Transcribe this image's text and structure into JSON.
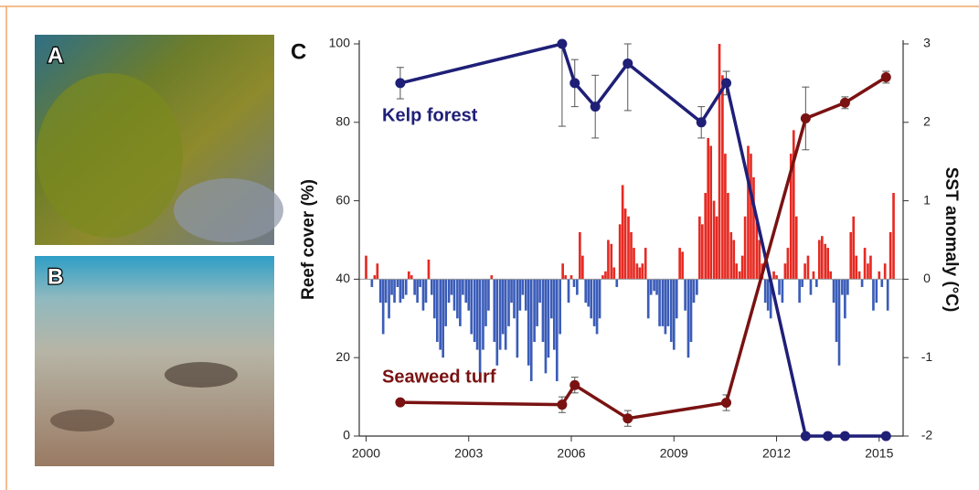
{
  "panels": {
    "a": "A",
    "b": "B"
  },
  "chart_data": {
    "type": "line",
    "panel_label": "C",
    "ylabel": "Reef cover (%)",
    "y2label": "SST anomaly (°C)",
    "xlim": [
      1999.8,
      2015.7
    ],
    "xticks": [
      2000,
      2003,
      2006,
      2009,
      2012,
      2015
    ],
    "ylim": [
      0,
      100
    ],
    "yticks": [
      0,
      20,
      40,
      60,
      80,
      100
    ],
    "y2lim": [
      -2,
      3
    ],
    "y2ticks": [
      -2,
      -1,
      0,
      1,
      2,
      3
    ],
    "series": [
      {
        "name": "Kelp forest",
        "color": "#1f1f78",
        "x": [
          2001.0,
          2005.73,
          2006.1,
          2006.7,
          2007.65,
          2009.8,
          2010.53,
          2012.85,
          2013.5,
          2014.0,
          2015.2
        ],
        "values": [
          90,
          100,
          90,
          84,
          95,
          80,
          90,
          0,
          0,
          0,
          0
        ],
        "errors": [
          4,
          21,
          6,
          8,
          12,
          4,
          3,
          null,
          null,
          null,
          null
        ]
      },
      {
        "name": "Seaweed turf",
        "color": "#7a1212",
        "x": [
          2001.0,
          2005.73,
          2006.1,
          2007.65,
          2010.53,
          2012.85,
          2014.0,
          2015.2
        ],
        "values": [
          8.6,
          8,
          13,
          4.5,
          8.5,
          81,
          85,
          91.5
        ],
        "errors": [
          null,
          2,
          2,
          2,
          2,
          8,
          1.5,
          1.5
        ]
      }
    ],
    "bars": {
      "axis": "y2",
      "positive_color": "#e62a22",
      "negative_color": "#3b5cb8",
      "x": [
        2000.0,
        2000.08,
        2000.17,
        2000.25,
        2000.33,
        2000.42,
        2000.5,
        2000.58,
        2000.67,
        2000.75,
        2000.83,
        2000.92,
        2001.0,
        2001.08,
        2001.17,
        2001.25,
        2001.33,
        2001.42,
        2001.5,
        2001.58,
        2001.67,
        2001.75,
        2001.83,
        2001.92,
        2002.0,
        2002.08,
        2002.17,
        2002.25,
        2002.33,
        2002.42,
        2002.5,
        2002.58,
        2002.67,
        2002.75,
        2002.83,
        2002.92,
        2003.0,
        2003.08,
        2003.17,
        2003.25,
        2003.33,
        2003.42,
        2003.5,
        2003.58,
        2003.67,
        2003.75,
        2003.83,
        2003.92,
        2004.0,
        2004.08,
        2004.17,
        2004.25,
        2004.33,
        2004.42,
        2004.5,
        2004.58,
        2004.67,
        2004.75,
        2004.83,
        2004.92,
        2005.0,
        2005.08,
        2005.17,
        2005.25,
        2005.33,
        2005.42,
        2005.5,
        2005.58,
        2005.67,
        2005.75,
        2005.83,
        2005.92,
        2006.0,
        2006.08,
        2006.17,
        2006.25,
        2006.33,
        2006.42,
        2006.5,
        2006.58,
        2006.67,
        2006.75,
        2006.83,
        2006.92,
        2007.0,
        2007.08,
        2007.17,
        2007.25,
        2007.33,
        2007.42,
        2007.5,
        2007.58,
        2007.67,
        2007.75,
        2007.83,
        2007.92,
        2008.0,
        2008.08,
        2008.17,
        2008.25,
        2008.33,
        2008.42,
        2008.5,
        2008.58,
        2008.67,
        2008.75,
        2008.83,
        2008.92,
        2009.0,
        2009.08,
        2009.17,
        2009.25,
        2009.33,
        2009.42,
        2009.5,
        2009.58,
        2009.67,
        2009.75,
        2009.83,
        2009.92,
        2010.0,
        2010.08,
        2010.17,
        2010.25,
        2010.33,
        2010.42,
        2010.5,
        2010.58,
        2010.67,
        2010.75,
        2010.83,
        2010.92,
        2011.0,
        2011.08,
        2011.17,
        2011.25,
        2011.33,
        2011.42,
        2011.5,
        2011.58,
        2011.67,
        2011.75,
        2011.83,
        2011.92,
        2012.0,
        2012.08,
        2012.17,
        2012.25,
        2012.33,
        2012.42,
        2012.5,
        2012.58,
        2012.67,
        2012.75,
        2012.83,
        2012.92,
        2013.0,
        2013.08,
        2013.17,
        2013.25,
        2013.33,
        2013.42,
        2013.5,
        2013.58,
        2013.67,
        2013.75,
        2013.83,
        2013.92,
        2014.0,
        2014.08,
        2014.17,
        2014.25,
        2014.33,
        2014.42,
        2014.5,
        2014.58,
        2014.67,
        2014.75,
        2014.83,
        2014.92,
        2015.0,
        2015.08,
        2015.17,
        2015.25,
        2015.33,
        2015.42
      ],
      "values": [
        0.3,
        0,
        -0.1,
        0.05,
        0.2,
        -0.3,
        -0.7,
        -0.3,
        -0.5,
        -0.2,
        -0.3,
        -0.1,
        -0.3,
        -0.25,
        -0.2,
        0.1,
        0.05,
        -0.2,
        -0.3,
        -0.1,
        -0.4,
        -0.3,
        0.25,
        -0.2,
        -0.5,
        -0.8,
        -0.9,
        -1.0,
        -0.6,
        -0.3,
        -0.2,
        -0.4,
        -0.5,
        -0.6,
        -0.2,
        -0.3,
        -0.4,
        -0.7,
        -0.8,
        -0.9,
        -1.2,
        -0.9,
        -0.6,
        -0.4,
        0.05,
        -0.8,
        -1.1,
        -0.9,
        -0.7,
        -0.9,
        -0.6,
        -0.3,
        -0.5,
        -1.0,
        -0.4,
        -0.2,
        -0.4,
        -1.1,
        -1.3,
        -0.8,
        -0.6,
        -0.3,
        -0.8,
        -1.2,
        -1.0,
        -0.5,
        -0.9,
        -1.3,
        -0.7,
        0.2,
        0.05,
        -0.3,
        0.05,
        -0.1,
        -0.2,
        0.6,
        0.3,
        -0.3,
        -0.35,
        -0.5,
        -0.6,
        -0.7,
        -0.5,
        0.05,
        0.1,
        0.5,
        0.45,
        0.15,
        -0.1,
        0.7,
        1.2,
        0.9,
        0.8,
        0.6,
        0.4,
        0.2,
        0.15,
        0.2,
        0.4,
        -0.5,
        -0.2,
        -0.15,
        -0.2,
        -0.6,
        -0.6,
        -0.7,
        -0.6,
        -0.8,
        -0.9,
        -0.5,
        0.4,
        0.35,
        -0.4,
        -1.0,
        -0.8,
        -0.3,
        -0.2,
        0.8,
        0.7,
        1.1,
        1.8,
        1.7,
        1.0,
        0.8,
        3.0,
        2.6,
        1.6,
        1.1,
        0.6,
        0.5,
        0.2,
        0.1,
        0.3,
        0.8,
        1.7,
        1.6,
        1.3,
        0.8,
        0.5,
        0.2,
        -0.3,
        -0.4,
        -0.5,
        0.1,
        0.05,
        -0.2,
        -0.3,
        0.2,
        0.4,
        1.6,
        1.9,
        0.8,
        -0.3,
        -0.1,
        0.2,
        0.3,
        -0.2,
        0.1,
        -0.1,
        0.5,
        0.55,
        0.45,
        0.4,
        0.1,
        -0.3,
        -0.8,
        -1.1,
        -0.2,
        -0.5,
        -0.2,
        0.6,
        0.8,
        0.3,
        0.1,
        -0.1,
        0.4,
        0.2,
        0.3,
        -0.4,
        -0.3,
        0.1,
        -0.1,
        0.2,
        -0.4,
        0.6,
        1.1
      ]
    }
  }
}
